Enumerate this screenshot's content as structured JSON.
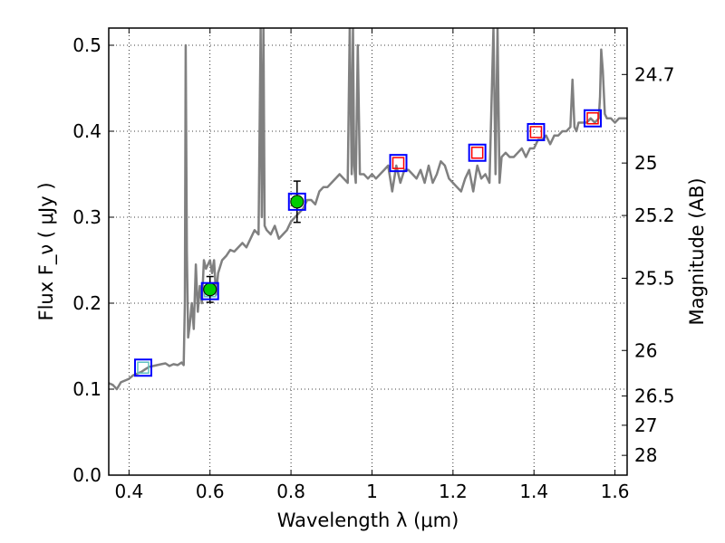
{
  "chart_data": {
    "type": "line",
    "title": "",
    "xlabel": "Wavelength  λ (μm)",
    "ylabel": "Flux  F_ν ( μJy )",
    "ylabel_right": "Magnitude (AB)",
    "xlim": [
      0.35,
      1.63
    ],
    "ylim": [
      0.0,
      0.52
    ],
    "grid": true,
    "x_ticks": [
      {
        "value": 0.4,
        "label": "0.4"
      },
      {
        "value": 0.6,
        "label": "0.6"
      },
      {
        "value": 0.8,
        "label": "0.8"
      },
      {
        "value": 1.0,
        "label": "1"
      },
      {
        "value": 1.2,
        "label": "1.2"
      },
      {
        "value": 1.4,
        "label": "1.4"
      },
      {
        "value": 1.6,
        "label": "1.6"
      }
    ],
    "y_ticks": [
      {
        "value": 0.0,
        "label": "0.0"
      },
      {
        "value": 0.1,
        "label": "0.1"
      },
      {
        "value": 0.2,
        "label": "0.2"
      },
      {
        "value": 0.3,
        "label": "0.3"
      },
      {
        "value": 0.4,
        "label": "0.4"
      },
      {
        "value": 0.5,
        "label": "0.5"
      }
    ],
    "right_ticks": [
      {
        "flux": 0.466,
        "label": "24.7"
      },
      {
        "flux": 0.363,
        "label": "25"
      },
      {
        "flux": 0.302,
        "label": "25.2"
      },
      {
        "flux": 0.229,
        "label": "25.5"
      },
      {
        "flux": 0.145,
        "label": "26"
      },
      {
        "flux": 0.092,
        "label": "26.5"
      },
      {
        "flux": 0.058,
        "label": "27"
      },
      {
        "flux": 0.023,
        "label": "28"
      }
    ],
    "series": [
      {
        "name": "model_sed",
        "color": "#808080",
        "x": [
          0.35,
          0.36,
          0.37,
          0.38,
          0.39,
          0.4,
          0.41,
          0.42,
          0.43,
          0.44,
          0.45,
          0.46,
          0.47,
          0.48,
          0.49,
          0.5,
          0.51,
          0.52,
          0.53,
          0.535,
          0.538,
          0.54,
          0.543,
          0.546,
          0.55,
          0.555,
          0.56,
          0.565,
          0.57,
          0.575,
          0.58,
          0.585,
          0.59,
          0.6,
          0.605,
          0.61,
          0.615,
          0.62,
          0.63,
          0.64,
          0.65,
          0.66,
          0.67,
          0.68,
          0.69,
          0.7,
          0.71,
          0.72,
          0.725,
          0.728,
          0.732,
          0.735,
          0.74,
          0.75,
          0.76,
          0.77,
          0.78,
          0.79,
          0.8,
          0.81,
          0.82,
          0.83,
          0.84,
          0.85,
          0.86,
          0.87,
          0.88,
          0.89,
          0.9,
          0.91,
          0.92,
          0.93,
          0.94,
          0.945,
          0.95,
          0.953,
          0.956,
          0.96,
          0.965,
          0.97,
          0.975,
          0.98,
          0.99,
          1.0,
          1.01,
          1.02,
          1.03,
          1.04,
          1.05,
          1.06,
          1.07,
          1.08,
          1.09,
          1.1,
          1.11,
          1.12,
          1.13,
          1.14,
          1.15,
          1.16,
          1.17,
          1.18,
          1.19,
          1.2,
          1.21,
          1.22,
          1.23,
          1.24,
          1.25,
          1.26,
          1.27,
          1.28,
          1.29,
          1.3,
          1.305,
          1.31,
          1.315,
          1.32,
          1.33,
          1.34,
          1.35,
          1.36,
          1.37,
          1.38,
          1.39,
          1.4,
          1.41,
          1.42,
          1.43,
          1.44,
          1.45,
          1.46,
          1.47,
          1.48,
          1.49,
          1.495,
          1.5,
          1.505,
          1.51,
          1.52,
          1.53,
          1.54,
          1.55,
          1.56,
          1.563,
          1.566,
          1.57,
          1.575,
          1.58,
          1.59,
          1.6,
          1.61,
          1.62,
          1.63
        ],
        "y": [
          0.107,
          0.105,
          0.1,
          0.108,
          0.11,
          0.112,
          0.116,
          0.118,
          0.12,
          0.123,
          0.126,
          0.127,
          0.128,
          0.129,
          0.13,
          0.127,
          0.129,
          0.128,
          0.131,
          0.128,
          0.2,
          0.5,
          0.26,
          0.16,
          0.175,
          0.2,
          0.17,
          0.245,
          0.19,
          0.22,
          0.2,
          0.25,
          0.24,
          0.25,
          0.235,
          0.25,
          0.21,
          0.235,
          0.25,
          0.255,
          0.262,
          0.26,
          0.265,
          0.27,
          0.265,
          0.275,
          0.285,
          0.28,
          0.52,
          0.3,
          0.52,
          0.29,
          0.285,
          0.28,
          0.29,
          0.275,
          0.28,
          0.285,
          0.295,
          0.3,
          0.305,
          0.31,
          0.32,
          0.32,
          0.315,
          0.33,
          0.335,
          0.335,
          0.34,
          0.345,
          0.35,
          0.345,
          0.34,
          0.52,
          0.35,
          0.52,
          0.36,
          0.34,
          0.5,
          0.35,
          0.35,
          0.35,
          0.345,
          0.35,
          0.345,
          0.35,
          0.355,
          0.36,
          0.33,
          0.36,
          0.34,
          0.355,
          0.355,
          0.35,
          0.345,
          0.355,
          0.34,
          0.36,
          0.34,
          0.35,
          0.365,
          0.36,
          0.345,
          0.34,
          0.335,
          0.33,
          0.345,
          0.355,
          0.33,
          0.36,
          0.345,
          0.35,
          0.34,
          0.52,
          0.35,
          0.52,
          0.34,
          0.37,
          0.375,
          0.37,
          0.37,
          0.375,
          0.38,
          0.37,
          0.38,
          0.38,
          0.39,
          0.39,
          0.395,
          0.385,
          0.395,
          0.395,
          0.4,
          0.4,
          0.405,
          0.46,
          0.405,
          0.4,
          0.41,
          0.41,
          0.41,
          0.415,
          0.41,
          0.415,
          0.44,
          0.495,
          0.47,
          0.42,
          0.415,
          0.415,
          0.41,
          0.415,
          0.415,
          0.415
        ]
      }
    ],
    "photometry": [
      {
        "name": "green_points",
        "color": "#00cc00",
        "x": [
          0.6,
          0.815
        ],
        "y": [
          0.216,
          0.318
        ],
        "yerr": [
          0.015,
          0.024
        ]
      },
      {
        "name": "blue_boxes",
        "color": "#0000ff",
        "x": [
          0.435,
          0.6,
          0.815,
          1.065,
          1.26,
          1.405,
          1.545
        ],
        "y": [
          0.125,
          0.214,
          0.318,
          0.363,
          0.375,
          0.399,
          0.415
        ]
      },
      {
        "name": "red_boxes",
        "color": "#ff0000",
        "x": [
          1.065,
          1.26,
          1.405,
          1.545
        ],
        "y": [
          0.363,
          0.375,
          0.399,
          0.415
        ]
      },
      {
        "name": "teal_model_bands",
        "color": "#60c0c0",
        "x": [
          0.435,
          0.6
        ],
        "y": [
          0.125,
          0.214
        ]
      }
    ]
  }
}
